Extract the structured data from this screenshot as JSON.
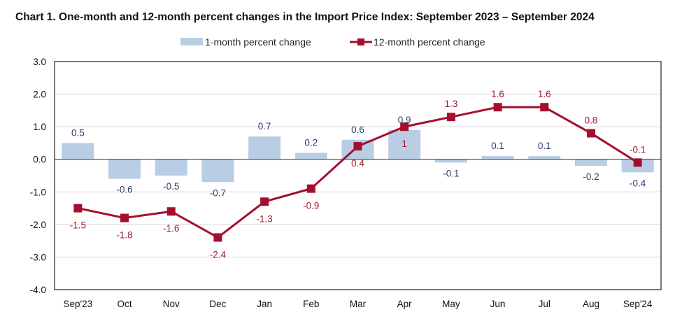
{
  "chart_data": {
    "type": "bar+line",
    "title": "Chart 1. One-month and 12-month percent changes in the Import Price Index: September 2023 – September 2024",
    "categories": [
      "Sep'23",
      "Oct",
      "Nov",
      "Dec",
      "Jan",
      "Feb",
      "Mar",
      "Apr",
      "May",
      "Jun",
      "Jul",
      "Aug",
      "Sep'24"
    ],
    "series": [
      {
        "name": "1-month percent change",
        "type": "bar",
        "color": "#b9cde5",
        "values": [
          0.5,
          -0.6,
          -0.5,
          -0.7,
          0.7,
          0.2,
          0.6,
          0.9,
          -0.1,
          0.1,
          0.1,
          -0.2,
          -0.4
        ]
      },
      {
        "name": "12-month percent change",
        "type": "line",
        "color": "#a50e2d",
        "values": [
          -1.5,
          -1.8,
          -1.6,
          -2.4,
          -1.3,
          -0.9,
          0.4,
          1.0,
          1.3,
          1.6,
          1.6,
          0.8,
          -0.1
        ]
      }
    ],
    "ylim": [
      -4.0,
      3.0
    ],
    "yticks": [
      "3.0",
      "2.0",
      "1.0",
      "0.0",
      "-1.0",
      "-2.0",
      "-3.0",
      "-4.0"
    ],
    "grid": true,
    "legend": "top-center"
  }
}
